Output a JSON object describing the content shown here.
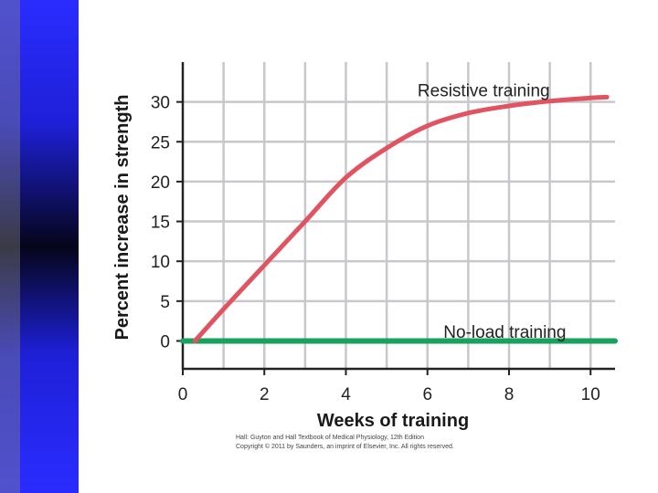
{
  "colors": {
    "sidebar": "#2a2cff",
    "resistive": "#e05462",
    "noload": "#1aa160",
    "grid": "#c7c7cc",
    "axis": "#222222"
  },
  "credit": {
    "line1": "Hall: Guyton and Hall Textbook of Medical Physiology, 12th Edition",
    "line2": "Copyright © 2011 by Saunders, an imprint of Elsevier, Inc. All rights reserved."
  },
  "chart_data": {
    "type": "line",
    "title": "",
    "xlabel": "Weeks of training",
    "ylabel": "Percent increase in strength",
    "xlim": [
      0,
      10.6
    ],
    "ylim": [
      -3.5,
      35
    ],
    "x_ticks": [
      0,
      2,
      4,
      6,
      8,
      10
    ],
    "y_ticks": [
      0,
      5,
      10,
      15,
      20,
      25,
      30
    ],
    "grid": true,
    "series": [
      {
        "name": "Resistive training",
        "color": "#e05462",
        "x": [
          0.3,
          1,
          2,
          3,
          4,
          5,
          6,
          7,
          8,
          9,
          10,
          10.4
        ],
        "y": [
          0,
          4,
          9.5,
          15,
          20.5,
          24.2,
          27,
          28.6,
          29.5,
          30.1,
          30.5,
          30.6
        ]
      },
      {
        "name": "No-load training",
        "color": "#1aa160",
        "x": [
          0,
          10.6
        ],
        "y": [
          0,
          0
        ]
      }
    ],
    "annotations": [
      {
        "text": "Resistive training",
        "x": 9,
        "y": 31.5
      },
      {
        "text": "No-load training",
        "x": 9.4,
        "y": 1.2
      }
    ]
  }
}
